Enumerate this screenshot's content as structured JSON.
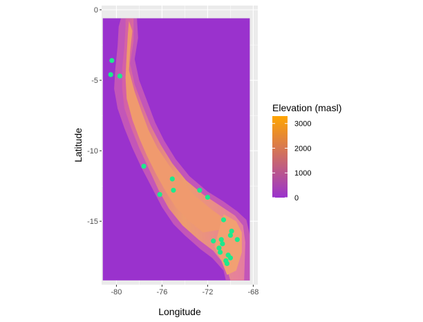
{
  "chart_data": {
    "type": "heatmap",
    "title": "",
    "xlabel": "Longitude",
    "ylabel": "Latitude",
    "xlim": [
      -81.3,
      -67.6
    ],
    "ylim": [
      -19.5,
      0.3
    ],
    "x_ticks": [
      -80,
      -76,
      -72,
      -68
    ],
    "x_tick_labels": [
      "-80",
      "-76",
      "-72",
      "-68"
    ],
    "y_ticks": [
      0,
      -5,
      -10,
      -15
    ],
    "y_tick_labels": [
      "0",
      "-5",
      "-10",
      "-15"
    ],
    "grid": true,
    "raster_extent": {
      "lon": [
        -81.2,
        -68.3
      ],
      "lat": [
        -19.2,
        -0.6
      ]
    },
    "legend": {
      "title": "Elevation (masl)",
      "placement": "right",
      "scale_min": 0,
      "scale_max": 3300,
      "breaks": [
        0,
        1000,
        2000,
        3000
      ],
      "break_labels": [
        "0",
        "1000",
        "2000",
        "3000"
      ],
      "low_color": "#9a32cd",
      "high_color": "#ffa500"
    },
    "background_color": "#ebebeb",
    "grid_color": "#ffffff",
    "point_color": "#1ee88c",
    "series": [
      {
        "name": "sites",
        "type": "scatter",
        "points": [
          {
            "lon": -80.4,
            "lat": -3.6
          },
          {
            "lon": -80.5,
            "lat": -4.6
          },
          {
            "lon": -79.7,
            "lat": -4.7
          },
          {
            "lon": -77.6,
            "lat": -11.1
          },
          {
            "lon": -76.2,
            "lat": -13.1
          },
          {
            "lon": -75.1,
            "lat": -12.0
          },
          {
            "lon": -75.0,
            "lat": -12.8
          },
          {
            "lon": -72.7,
            "lat": -12.8
          },
          {
            "lon": -72.0,
            "lat": -13.3
          },
          {
            "lon": -70.6,
            "lat": -14.9
          },
          {
            "lon": -69.9,
            "lat": -15.7
          },
          {
            "lon": -70.0,
            "lat": -16.0
          },
          {
            "lon": -71.5,
            "lat": -16.4
          },
          {
            "lon": -70.8,
            "lat": -16.3
          },
          {
            "lon": -70.7,
            "lat": -16.6
          },
          {
            "lon": -69.4,
            "lat": -16.3
          },
          {
            "lon": -71.0,
            "lat": -16.9
          },
          {
            "lon": -70.9,
            "lat": -17.2
          },
          {
            "lon": -70.2,
            "lat": -17.4
          },
          {
            "lon": -70.0,
            "lat": -17.6
          },
          {
            "lon": -70.4,
            "lat": -17.8
          },
          {
            "lon": -70.3,
            "lat": -18.0
          }
        ]
      }
    ]
  }
}
